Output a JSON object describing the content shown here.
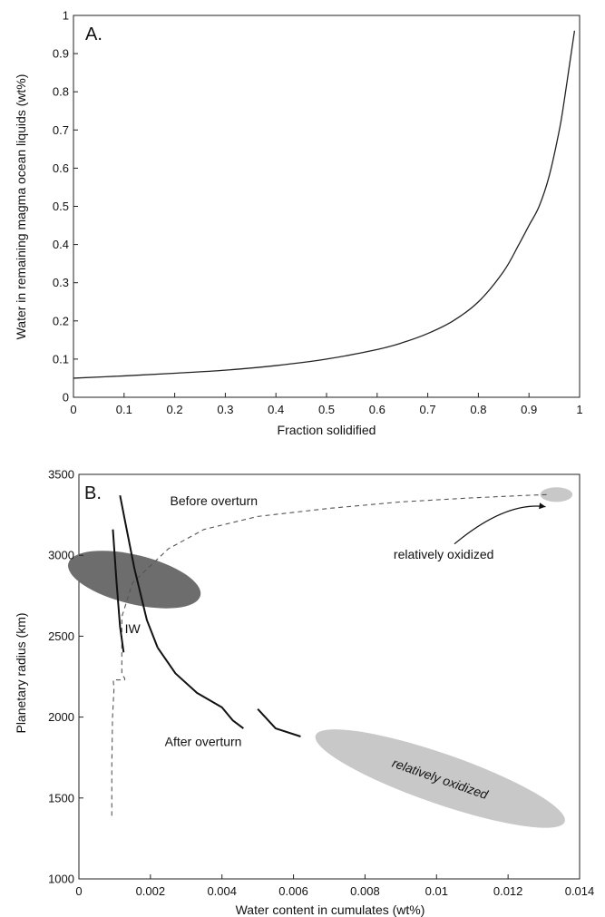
{
  "chart_data": [
    {
      "type": "line",
      "panel_label": "A.",
      "xlabel": "Fraction solidified",
      "ylabel": "Water in remaining magma ocean liquids (wt%)",
      "xlim": [
        0,
        1
      ],
      "ylim": [
        0,
        1
      ],
      "xticks": [
        "0",
        "0.1",
        "0.2",
        "0.3",
        "0.4",
        "0.5",
        "0.6",
        "0.7",
        "0.8",
        "0.9",
        "1"
      ],
      "yticks": [
        "0",
        "0.1",
        "0.2",
        "0.3",
        "0.4",
        "0.5",
        "0.6",
        "0.7",
        "0.8",
        "0.9",
        "1"
      ],
      "series": [
        {
          "x": [
            0,
            0.1,
            0.2,
            0.3,
            0.4,
            0.5,
            0.6,
            0.65,
            0.7,
            0.75,
            0.8,
            0.85,
            0.88,
            0.9,
            0.92,
            0.94,
            0.96,
            0.97,
            0.98,
            0.99
          ],
          "y": [
            0.05,
            0.056,
            0.063,
            0.071,
            0.083,
            0.1,
            0.125,
            0.143,
            0.167,
            0.2,
            0.25,
            0.33,
            0.4,
            0.45,
            0.5,
            0.58,
            0.7,
            0.78,
            0.87,
            0.96
          ],
          "color": "#222222"
        }
      ],
      "grid": false
    },
    {
      "type": "line",
      "panel_label": "B.",
      "xlabel": "Water content in cumulates (wt%)",
      "ylabel": "Planetary radius (km)",
      "xlim": [
        0,
        0.014
      ],
      "ylim": [
        1000,
        3500
      ],
      "xticks": [
        "0",
        "0.002",
        "0.004",
        "0.006",
        "0.008",
        "0.01",
        "0.012",
        "0.014"
      ],
      "yticks": [
        "1000",
        "1500",
        "2000",
        "2500",
        "3000",
        "3500"
      ],
      "series": [
        {
          "style": "dashed",
          "x": [
            0.00092,
            0.00092,
            0.00094,
            0.00098,
            0.00096,
            0.00128,
            0.00128,
            0.0012,
            0.0012,
            0.0015,
            0.0025,
            0.0035,
            0.005,
            0.007,
            0.009,
            0.011,
            0.0125,
            0.0131
          ],
          "y": [
            1390,
            1700,
            2000,
            2170,
            2230,
            2230,
            2240,
            2265,
            2620,
            2830,
            3040,
            3160,
            3240,
            3290,
            3330,
            3355,
            3370,
            3375
          ]
        },
        {
          "style": "solid",
          "x": [
            0.00115,
            0.0013,
            0.00155,
            0.0019,
            0.0022
          ],
          "y": [
            3370,
            3200,
            2920,
            2600,
            2430
          ]
        },
        {
          "style": "solid",
          "x": [
            0.00095,
            0.00105,
            0.00115,
            0.00125
          ],
          "y": [
            3160,
            2840,
            2560,
            2400
          ]
        },
        {
          "style": "solid",
          "x": [
            0.0022,
            0.0027,
            0.0033,
            0.004,
            0.0043,
            0.0046
          ],
          "y": [
            2430,
            2270,
            2150,
            2060,
            1980,
            1930
          ]
        },
        {
          "style": "solid",
          "x": [
            0.005,
            0.0055,
            0.0062
          ],
          "y": [
            2050,
            1930,
            1880
          ]
        }
      ],
      "regions": [
        {
          "label": "IW",
          "cx": 0.00155,
          "cy": 2850,
          "rx": 0.0029,
          "ry": 420,
          "angle": -76.3,
          "color": "#6d6d6d"
        },
        {
          "label": "relatively oxidized",
          "cx": 0.0101,
          "cy": 1620,
          "rx": 0.0039,
          "ry": 155,
          "angle": 19.1,
          "color": "#c8c8c8"
        },
        {
          "label": "",
          "cx": 0.01335,
          "cy": 3375,
          "rx": 0.00045,
          "ry": 45,
          "angle": 0,
          "color": "#c8c8c8"
        }
      ],
      "annotations": [
        {
          "text": "Before overturn",
          "x": 0.00255,
          "y": 3310
        },
        {
          "text": "After overturn",
          "x": 0.0024,
          "y": 1820
        },
        {
          "text": "relatively oxidized",
          "x": 0.0102,
          "y": 2980,
          "arrow_to": [
            0.01305,
            3300
          ]
        }
      ],
      "grid": false
    }
  ]
}
